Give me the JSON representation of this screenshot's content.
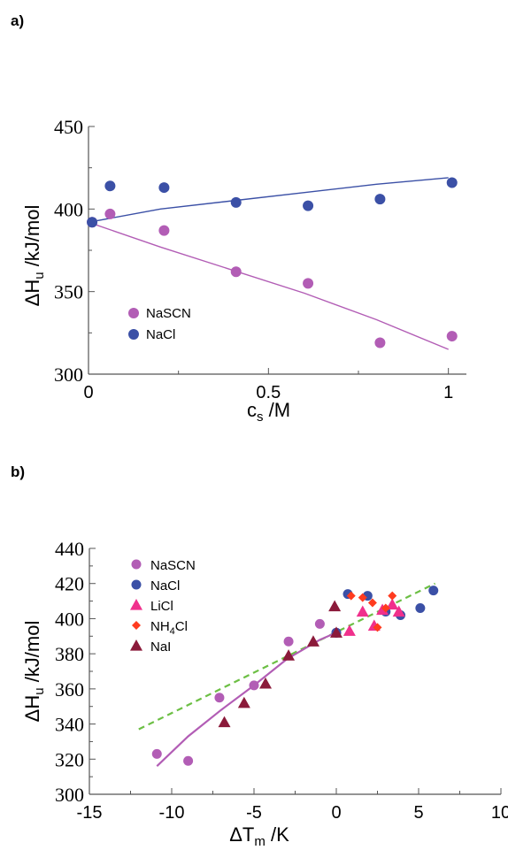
{
  "panel_labels": {
    "a": "a)",
    "b": "b)"
  },
  "chart_data": [
    {
      "type": "scatter",
      "panel": "a)",
      "title": "",
      "xlabel": "c",
      "xlabel_sub": "s",
      "xlabel_unit": " /M",
      "ylabel": "ΔH",
      "ylabel_sub": "u",
      "ylabel_unit": " /kJ/mol",
      "xlim": [
        0,
        1.05
      ],
      "ylim": [
        300,
        450
      ],
      "xticks": [
        0,
        0.5,
        1
      ],
      "xtick_labels": [
        "0",
        "0.5",
        "1"
      ],
      "yticks": [
        300,
        350,
        400,
        450
      ],
      "ytick_labels": [
        "300",
        "350",
        "400",
        "450"
      ],
      "grid": false,
      "legend_position": "bottom-left",
      "series": [
        {
          "name": "NaSCN",
          "color": "#b25db5",
          "marker": "circle",
          "points": [
            [
              0.01,
              392
            ],
            [
              0.06,
              397
            ],
            [
              0.21,
              387
            ],
            [
              0.41,
              362
            ],
            [
              0.61,
              355
            ],
            [
              0.81,
              319
            ],
            [
              1.01,
              323
            ]
          ],
          "fit": [
            [
              0,
              392
            ],
            [
              0.2,
              377
            ],
            [
              0.4,
              363
            ],
            [
              0.6,
              349
            ],
            [
              0.8,
              333
            ],
            [
              1.0,
              315
            ]
          ]
        },
        {
          "name": "NaCl",
          "color": "#3b50a6",
          "marker": "circle",
          "points": [
            [
              0.01,
              392
            ],
            [
              0.06,
              414
            ],
            [
              0.21,
              413
            ],
            [
              0.41,
              404
            ],
            [
              0.61,
              402
            ],
            [
              0.81,
              406
            ],
            [
              1.01,
              416
            ]
          ],
          "fit": [
            [
              0,
              392
            ],
            [
              0.2,
              400
            ],
            [
              0.4,
              405
            ],
            [
              0.6,
              410
            ],
            [
              0.8,
              415
            ],
            [
              1.0,
              419
            ]
          ]
        }
      ]
    },
    {
      "type": "scatter",
      "panel": "b)",
      "title": "",
      "xlabel": "ΔT",
      "xlabel_sub": "m",
      "xlabel_unit": " /K",
      "ylabel": "ΔH",
      "ylabel_sub": "u",
      "ylabel_unit": " /kJ/mol",
      "xlim": [
        -15,
        10
      ],
      "ylim": [
        300,
        440
      ],
      "xticks": [
        -15,
        -10,
        -5,
        0,
        5,
        10
      ],
      "xtick_labels": [
        "-15",
        "-10",
        "-5",
        "0",
        "5",
        "10"
      ],
      "yticks": [
        300,
        320,
        340,
        360,
        380,
        400,
        420,
        440
      ],
      "ytick_labels": [
        "300",
        "320",
        "340",
        "360",
        "380",
        "400",
        "420",
        "440"
      ],
      "grid": false,
      "legend_position": "top-left",
      "series": [
        {
          "name": "NaSCN",
          "color": "#b25db5",
          "marker": "circle",
          "points": [
            [
              -10.9,
              323
            ],
            [
              -9.0,
              319
            ],
            [
              -7.1,
              355
            ],
            [
              -5.0,
              362
            ],
            [
              -2.9,
              387
            ],
            [
              -1.0,
              397
            ],
            [
              0,
              392
            ]
          ]
        },
        {
          "name": "NaCl",
          "color": "#3b50a6",
          "marker": "circle",
          "points": [
            [
              0.7,
              414
            ],
            [
              1.9,
              413
            ],
            [
              3.0,
              404
            ],
            [
              3.9,
              402
            ],
            [
              5.1,
              406
            ],
            [
              5.9,
              416
            ],
            [
              0,
              392
            ]
          ]
        },
        {
          "name": "LiCl",
          "label_main": "LiCl",
          "color": "#f0308c",
          "marker": "triangle",
          "points": [
            [
              0.8,
              393
            ],
            [
              1.6,
              404
            ],
            [
              2.3,
              396
            ],
            [
              2.8,
              405
            ],
            [
              3.4,
              408
            ],
            [
              3.8,
              404
            ]
          ]
        },
        {
          "name": "NH4Cl",
          "label_main": "NH",
          "label_sub": "4",
          "label_tail": "Cl",
          "color": "#ff3b1f",
          "marker": "diamond",
          "points": [
            [
              0.9,
              413
            ],
            [
              1.6,
              412
            ],
            [
              2.2,
              409
            ],
            [
              2.5,
              395
            ],
            [
              3.0,
              406
            ],
            [
              3.4,
              413
            ]
          ]
        },
        {
          "name": "NaI",
          "label_main": "NaI",
          "color": "#8b1a3a",
          "marker": "triangle",
          "points": [
            [
              -6.8,
              341
            ],
            [
              -5.6,
              352
            ],
            [
              -4.3,
              363
            ],
            [
              -2.9,
              379
            ],
            [
              -1.4,
              387
            ],
            [
              -0.1,
              407
            ],
            [
              0,
              392
            ]
          ]
        }
      ],
      "fit_solid": {
        "color": "#b25db5",
        "points": [
          [
            -10.9,
            316
          ],
          [
            -9,
            333
          ],
          [
            -7,
            348
          ],
          [
            -5,
            362
          ],
          [
            -3,
            377
          ],
          [
            -1,
            388
          ],
          [
            0,
            392
          ]
        ]
      },
      "fit_dashed": {
        "color": "#6cbf44",
        "points": [
          [
            -12,
            337
          ],
          [
            6,
            420
          ]
        ]
      }
    }
  ]
}
